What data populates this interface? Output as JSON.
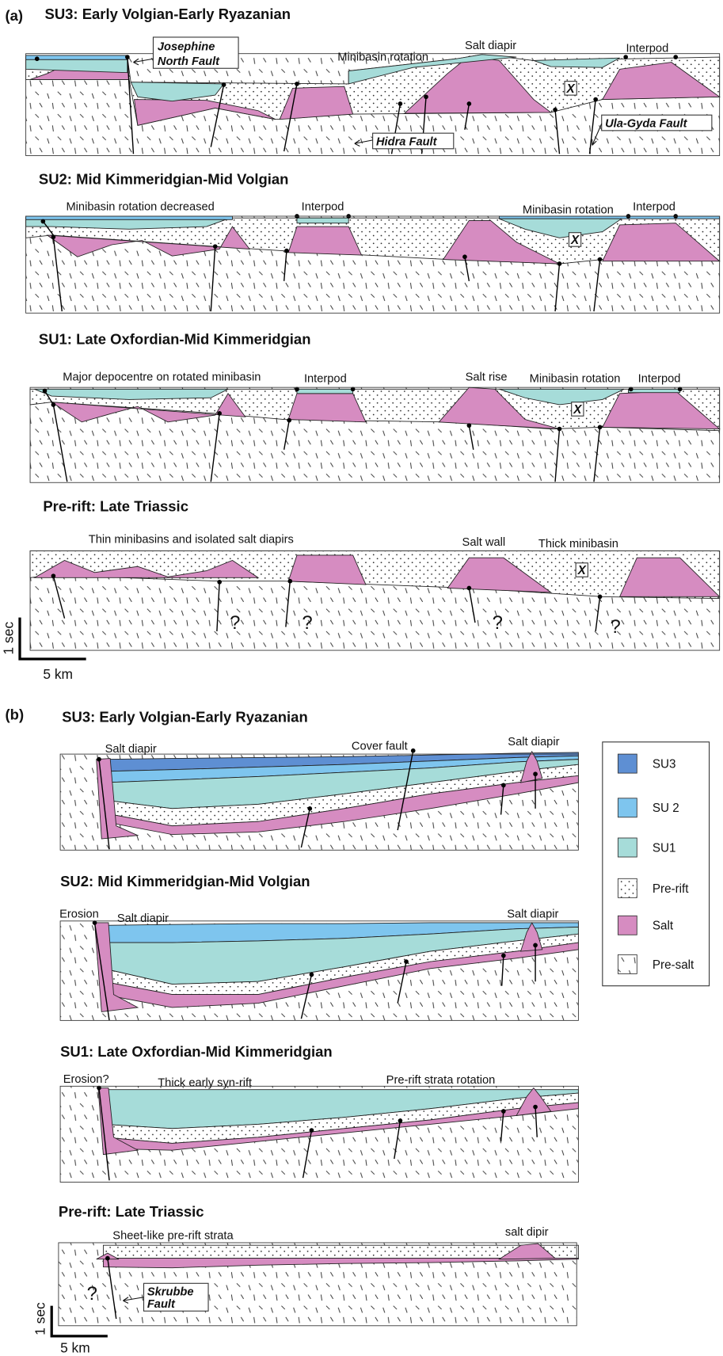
{
  "panel_a": {
    "label": "(a)",
    "sections": [
      {
        "title": "SU3: Early Volgian-Early Ryazanian",
        "labels": [
          "Josephine",
          "North Fault",
          "Minibasin rotation",
          "Salt diapir",
          "Interpod",
          "X",
          "Hidra Fault",
          "Ula-Gyda Fault"
        ]
      },
      {
        "title": "SU2: Mid Kimmeridgian-Mid Volgian",
        "labels": [
          "Minibasin rotation decreased",
          "Interpod",
          "Minibasin rotation",
          "Interpod",
          "X"
        ]
      },
      {
        "title": "SU1: Late Oxfordian-Mid Kimmeridgian",
        "labels": [
          "Major depocentre on rotated minibasin",
          "Interpod",
          "Salt rise",
          "Minibasin rotation",
          "Interpod",
          "X"
        ]
      },
      {
        "title": "Pre-rift: Late Triassic",
        "labels": [
          "Thin minibasins and isolated salt diapirs",
          "Salt wall",
          "Thick minibasin",
          "X",
          "?",
          "?",
          "?",
          "?"
        ]
      }
    ],
    "scale": {
      "vertical": "1 sec",
      "horizontal": "5 km"
    }
  },
  "panel_b": {
    "label": "(b)",
    "sections": [
      {
        "title": "SU3: Early Volgian-Early Ryazanian",
        "labels": [
          "Salt diapir",
          "Cover fault",
          "Salt diapir"
        ]
      },
      {
        "title": "SU2: Mid Kimmeridgian-Mid Volgian",
        "labels": [
          "Erosion",
          "Salt diapir",
          "Salt diapir"
        ]
      },
      {
        "title": "SU1: Late Oxfordian-Mid Kimmeridgian",
        "labels": [
          "Erosion?",
          "Thick early syn-rift",
          "Pre-rift strata rotation"
        ]
      },
      {
        "title": "Pre-rift: Late Triassic",
        "labels": [
          "Sheet-like pre-rift strata",
          "salt dipir",
          "?",
          "Skrubbe",
          "Fault"
        ]
      }
    ],
    "scale": {
      "vertical": "1 sec",
      "horizontal": "5 km"
    }
  },
  "legend": [
    "SU3",
    "SU 2",
    "SU1",
    "Pre-rift",
    "Salt",
    "Pre-salt"
  ]
}
